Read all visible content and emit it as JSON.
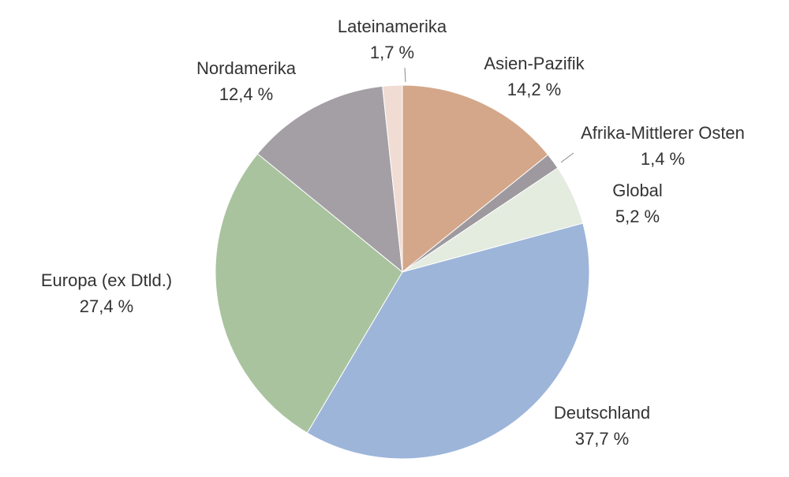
{
  "chart_data": {
    "type": "pie",
    "categories": [
      "Asien-Pazifik",
      "Afrika-Mittlerer Osten",
      "Global",
      "Deutschland",
      "Europa (ex Dtld.)",
      "Nordamerika",
      "Lateinamerika"
    ],
    "values": [
      14.2,
      1.4,
      5.2,
      37.7,
      27.4,
      12.4,
      1.7
    ],
    "value_labels": [
      "14,2 %",
      "1,4 %",
      "5,2 %",
      "37,7 %",
      "27,4 %",
      "12,4 %",
      "1,7 %"
    ],
    "colors": [
      "#d4a78a",
      "#9e999f",
      "#e4ebdf",
      "#9db5d9",
      "#a9c39f",
      "#a49ea5",
      "#f0dcd2"
    ]
  }
}
